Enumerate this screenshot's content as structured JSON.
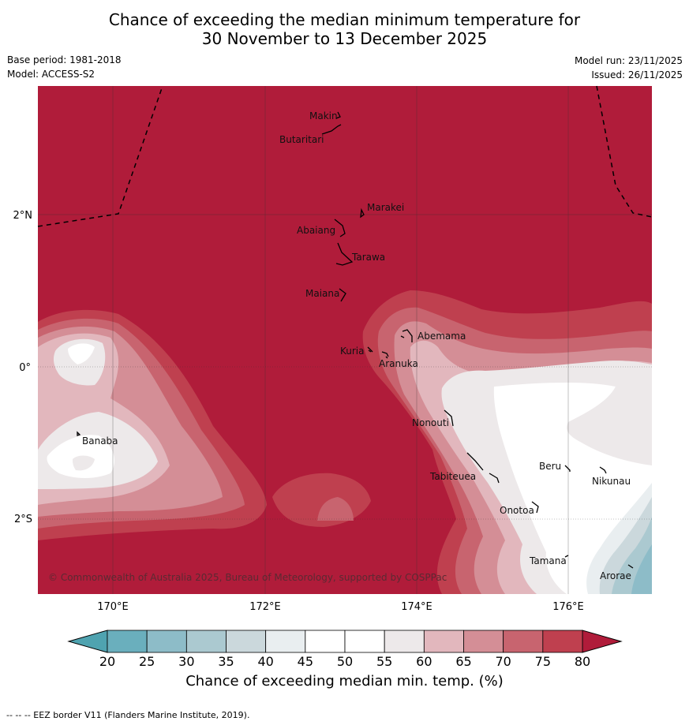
{
  "title": {
    "line1": "Chance of exceeding the median minimum temperature for",
    "line2": "30 November to 13 December 2025"
  },
  "meta": {
    "base_period": "Base period: 1981-2018",
    "model": "Model: ACCESS-S2",
    "model_run": "Model run: 23/11/2025",
    "issued": "Issued: 26/11/2025"
  },
  "axes": {
    "lon_ticks": [
      "170°E",
      "172°E",
      "174°E",
      "176°E"
    ],
    "lat_ticks": [
      "2°N",
      "0°",
      "2°S"
    ]
  },
  "islands": {
    "makin": "Makin",
    "butaritari": "Butaritari",
    "marakei": "Marakei",
    "abaiang": "Abaiang",
    "tarawa": "Tarawa",
    "maiana": "Maiana",
    "abemama": "Abemama",
    "kuria": "Kuria",
    "aranuka": "Aranuka",
    "nonouti": "Nonouti",
    "banaba": "Banaba",
    "tabiteuea": "Tabiteuea",
    "beru": "Beru",
    "nikunau": "Nikunau",
    "onotoa": "Onotoa",
    "tamana": "Tamana",
    "arorae": "Arorae"
  },
  "copyright": "© Commonwealth of Australia 2025, Bureau of Meteorology, supported by COSPPac",
  "colorbar": {
    "ticks": [
      "20",
      "25",
      "30",
      "35",
      "40",
      "45",
      "50",
      "55",
      "60",
      "65",
      "70",
      "75",
      "80"
    ],
    "colors": [
      "#6aafbd",
      "#8dbcc8",
      "#abc9d0",
      "#cbd8dc",
      "#e9eef0",
      "#ffffff",
      "#ffffff",
      "#ede9ea",
      "#e2b7bd",
      "#d48e96",
      "#c8646f",
      "#bf404f"
    ],
    "under_color": "#4fa3b0",
    "over_color": "#b01c3a",
    "label": "Chance of exceeding median min. temp. (%)"
  },
  "footer": "--  --  -- EEZ border V11 (Flanders Marine Institute, 2019)."
}
